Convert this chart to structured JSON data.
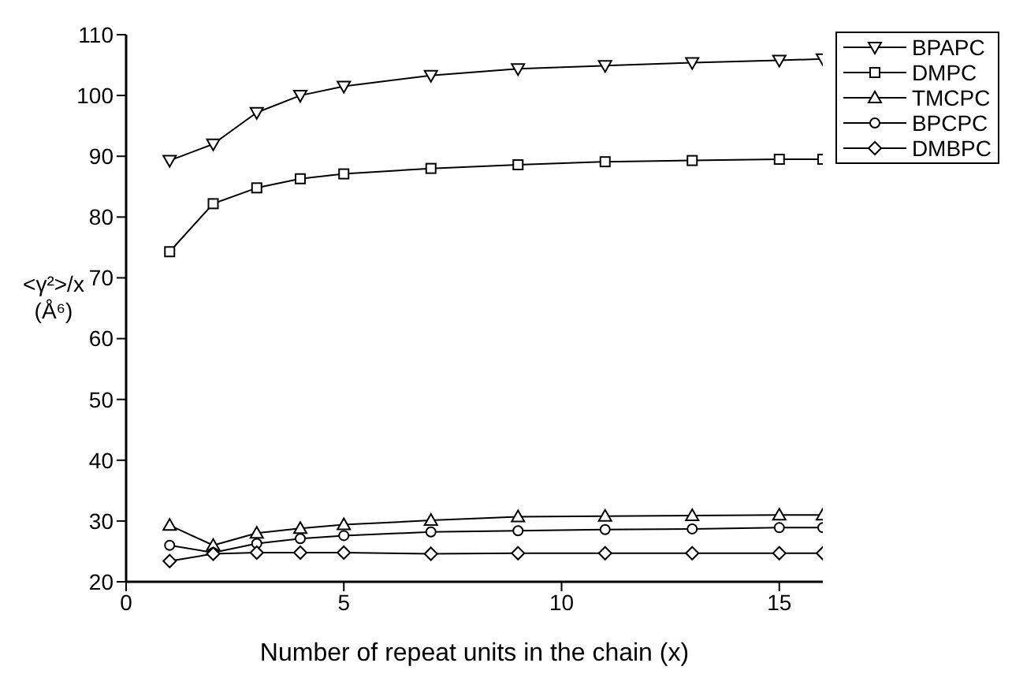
{
  "chart_data": {
    "type": "line",
    "xlabel": "Number of repeat units in the chain (x)",
    "ylabel": "<γ²>/x (Å⁶)",
    "x": [
      1,
      2,
      3,
      4,
      5,
      7,
      9,
      11,
      13,
      15,
      16
    ],
    "xlim": [
      0,
      16
    ],
    "xticks": [
      0,
      5,
      10,
      15
    ],
    "ylim": [
      20,
      110
    ],
    "yticks": [
      20,
      30,
      40,
      50,
      60,
      70,
      80,
      90,
      100,
      110
    ],
    "legend": "top right",
    "line_style": "solid",
    "series": [
      {
        "name": "BPAPC",
        "color": "#000000",
        "marker": "triangle-down",
        "values": [
          89.3,
          92,
          97.2,
          100,
          101.5,
          103.3,
          104.4,
          104.9,
          105.4,
          105.8,
          106
        ]
      },
      {
        "name": "DMPC",
        "color": "#000000",
        "marker": "square",
        "values": [
          74.3,
          82.2,
          84.8,
          86.3,
          87.1,
          88,
          88.6,
          89.1,
          89.3,
          89.5,
          89.5
        ]
      },
      {
        "name": "TMCPC",
        "color": "#000000",
        "marker": "triangle",
        "values": [
          29.3,
          26,
          28,
          28.8,
          29.4,
          30.1,
          30.7,
          30.8,
          30.9,
          31,
          31
        ]
      },
      {
        "name": "BPCPC",
        "color": "#000000",
        "marker": "circle",
        "values": [
          26,
          24.8,
          26.3,
          27.1,
          27.6,
          28.2,
          28.4,
          28.6,
          28.7,
          28.9,
          28.9
        ]
      },
      {
        "name": "DMBPC",
        "color": "#000000",
        "marker": "diamond",
        "values": [
          23.4,
          24.6,
          24.8,
          24.8,
          24.8,
          24.6,
          24.7,
          24.7,
          24.7,
          24.7,
          24.7
        ]
      }
    ]
  }
}
